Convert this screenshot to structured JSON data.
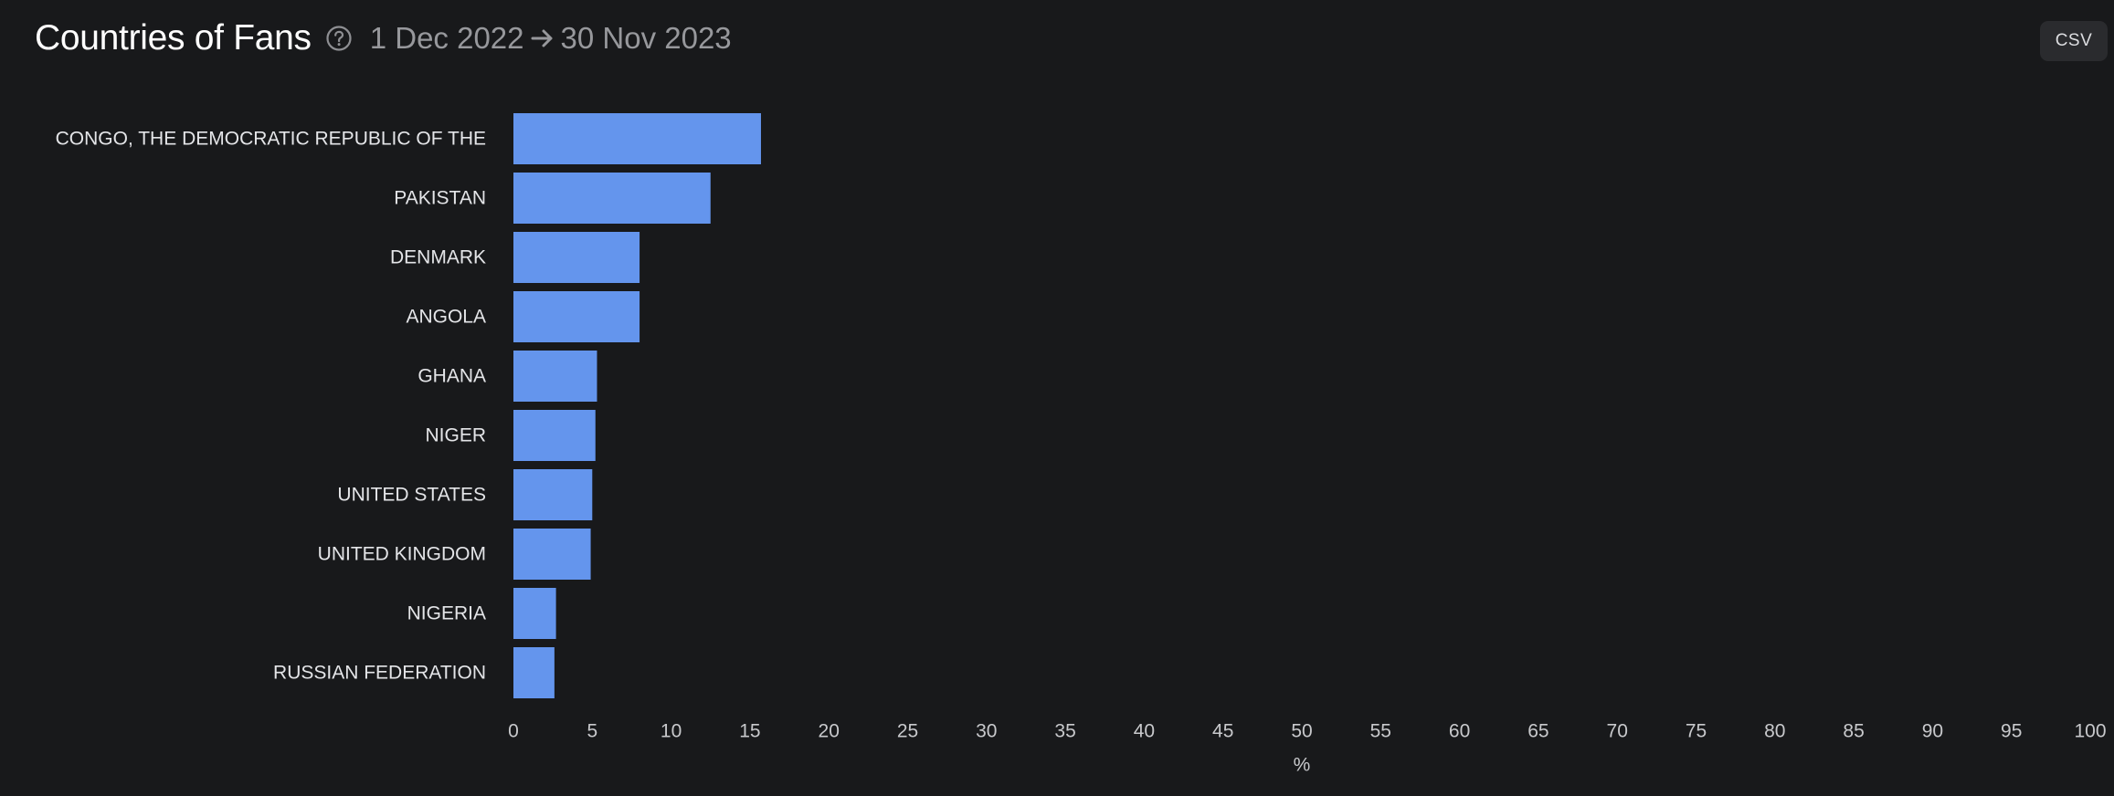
{
  "header": {
    "title": "Countries of Fans",
    "help_icon": "question-circle-icon",
    "date_start": "1 Dec 2022",
    "date_end": "30 Nov 2023",
    "arrow_icon": "arrow-right-icon"
  },
  "toolbar": {
    "csv_label": "CSV"
  },
  "colors": {
    "bar": "#6495ed",
    "background": "#18191b",
    "label": "#e4e5e8",
    "tick": "#c8c9cc"
  },
  "chart_data": {
    "type": "bar",
    "orientation": "horizontal",
    "categories": [
      "CONGO, THE DEMOCRATIC REPUBLIC OF THE",
      "PAKISTAN",
      "DENMARK",
      "ANGOLA",
      "GHANA",
      "NIGER",
      "UNITED STATES",
      "UNITED KINGDOM",
      "NIGERIA",
      "RUSSIAN FEDERATION"
    ],
    "values": [
      15.7,
      12.5,
      8.0,
      8.0,
      5.3,
      5.2,
      5.0,
      4.9,
      2.7,
      2.6
    ],
    "xlabel": "%",
    "ylabel": "",
    "xlim": [
      0,
      100
    ],
    "xticks": [
      0,
      5,
      10,
      15,
      20,
      25,
      30,
      35,
      40,
      45,
      50,
      55,
      60,
      65,
      70,
      75,
      80,
      85,
      90,
      95,
      100
    ],
    "grid": false,
    "legend": "none"
  }
}
